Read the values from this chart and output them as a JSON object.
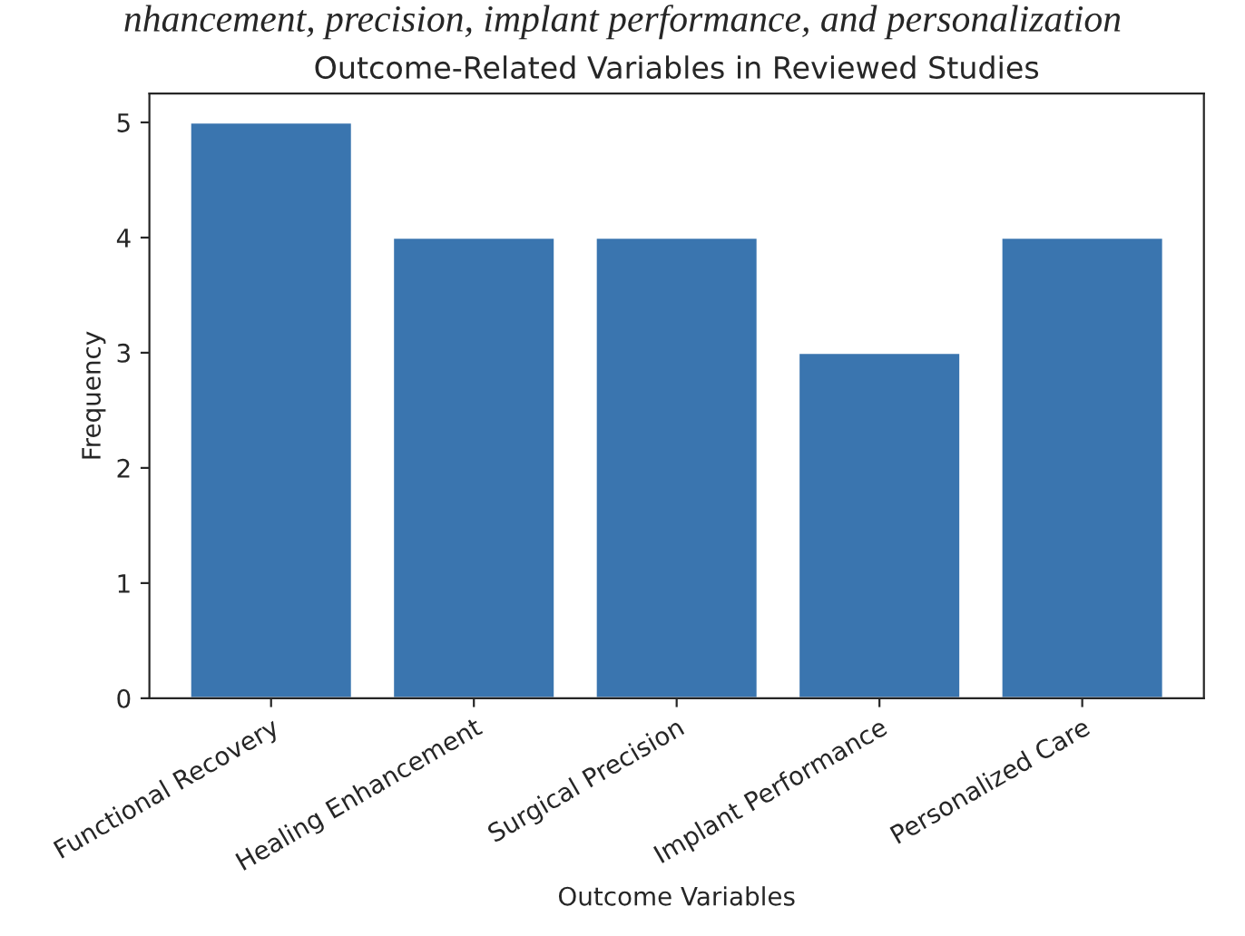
{
  "chart_data": {
    "type": "bar",
    "title": "Outcome-Related Variables in Reviewed Studies",
    "xlabel": "Outcome Variables",
    "ylabel": "Frequency",
    "annotations": [
      "nhancement, precision, implant performance, and personalization"
    ],
    "categories": [
      "Functional Recovery",
      "Healing Enhancement",
      "Surgical Precision",
      "Implant Performance",
      "Personalized Care"
    ],
    "values": [
      5,
      4,
      4,
      3,
      4
    ],
    "color": "#3a75af",
    "ylim": [
      0,
      5.25
    ],
    "yticks": [
      0,
      1,
      2,
      3,
      4,
      5
    ],
    "grid": false,
    "legend": false
  }
}
